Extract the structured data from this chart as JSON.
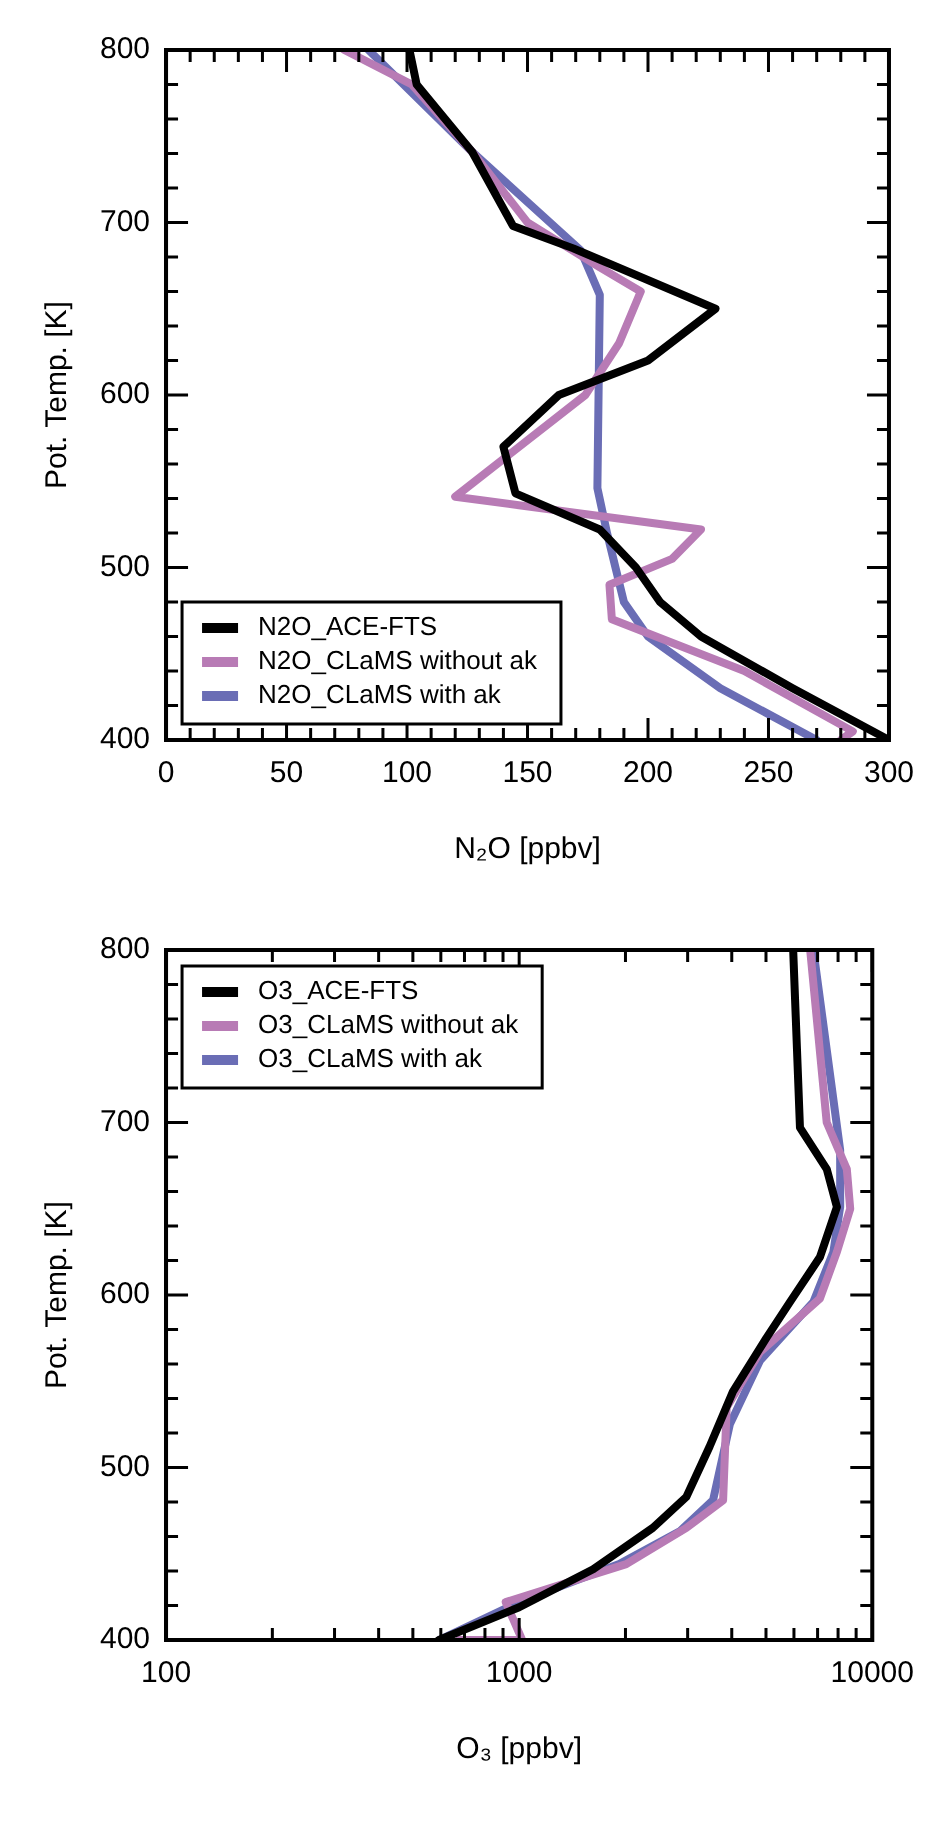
{
  "chart_data": [
    {
      "type": "line",
      "xlabel": "N₂O [ppbv]",
      "ylabel": "Pot. Temp. [K]",
      "legend": "bottom left",
      "grid": false,
      "line_style": "solid",
      "marker": "none",
      "xlim": [
        0,
        300
      ],
      "ylim": [
        400,
        800
      ],
      "xticks": [
        0,
        {
          "value": 10,
          "label": null
        },
        {
          "value": 20,
          "label": null
        },
        {
          "value": 30,
          "label": null
        },
        {
          "value": 40,
          "label": null
        },
        50,
        {
          "value": 60,
          "label": null
        },
        {
          "value": 70,
          "label": null
        },
        {
          "value": 80,
          "label": null
        },
        {
          "value": 90,
          "label": null
        },
        100,
        {
          "value": 110,
          "label": null
        },
        {
          "value": 120,
          "label": null
        },
        {
          "value": 130,
          "label": null
        },
        {
          "value": 140,
          "label": null
        },
        150,
        {
          "value": 160,
          "label": null
        },
        {
          "value": 170,
          "label": null
        },
        {
          "value": 180,
          "label": null
        },
        {
          "value": 190,
          "label": null
        },
        200,
        {
          "value": 210,
          "label": null
        },
        {
          "value": 220,
          "label": null
        },
        {
          "value": 230,
          "label": null
        },
        {
          "value": 240,
          "label": null
        },
        250,
        {
          "value": 260,
          "label": null
        },
        {
          "value": 270,
          "label": null
        },
        {
          "value": 280,
          "label": null
        },
        {
          "value": 290,
          "label": null
        },
        300
      ],
      "yticks": [
        400,
        {
          "value": 420,
          "label": null
        },
        {
          "value": 440,
          "label": null
        },
        {
          "value": 460,
          "label": null
        },
        {
          "value": 480,
          "label": null
        },
        500,
        {
          "value": 520,
          "label": null
        },
        {
          "value": 540,
          "label": null
        },
        {
          "value": 560,
          "label": null
        },
        {
          "value": 580,
          "label": null
        },
        600,
        {
          "value": 620,
          "label": null
        },
        {
          "value": 640,
          "label": null
        },
        {
          "value": 660,
          "label": null
        },
        {
          "value": 680,
          "label": null
        },
        700,
        {
          "value": 720,
          "label": null
        },
        {
          "value": 740,
          "label": null
        },
        {
          "value": 760,
          "label": null
        },
        {
          "value": 780,
          "label": null
        },
        800
      ],
      "series": [
        {
          "name": "N2O_ACE-FTS",
          "color": "#000000",
          "x": [
            101,
            104,
            127,
            144,
            169,
            228,
            200,
            163,
            140,
            145,
            180,
            195,
            205,
            222,
            260,
            300
          ],
          "values": [
            800,
            780,
            741,
            698,
            685,
            650,
            620,
            600,
            570,
            543,
            522,
            500,
            480,
            460,
            430,
            400
          ]
        },
        {
          "name": "N2O_CLaMS without ak",
          "color": "#b87bb5",
          "x": [
            74,
            102,
            127,
            150,
            180,
            197,
            188,
            174,
            120,
            222,
            210,
            184,
            185,
            240,
            285,
            280
          ],
          "values": [
            800,
            780,
            741,
            700,
            674,
            660,
            630,
            600,
            541,
            522,
            505,
            490,
            470,
            440,
            405,
            400
          ]
        },
        {
          "name": "N2O_CLaMS with ak",
          "color": "#6a6db5",
          "x": [
            84,
            127,
            172,
            180,
            179,
            183,
            190,
            200,
            230,
            270
          ],
          "values": [
            800,
            741,
            684,
            658,
            546,
            520,
            480,
            460,
            430,
            400
          ]
        }
      ]
    },
    {
      "type": "line",
      "xlabel": "O₃ [ppbv]",
      "ylabel": "Pot. Temp. [K]",
      "legend": "top left",
      "grid": false,
      "log": "x",
      "line_style": "solid",
      "marker": "none",
      "xlim": [
        100,
        10000
      ],
      "ylim": [
        400,
        800
      ],
      "xticks": [
        100,
        {
          "value": 200,
          "label": null
        },
        {
          "value": 300,
          "label": null
        },
        {
          "value": 400,
          "label": null
        },
        {
          "value": 500,
          "label": null
        },
        {
          "value": 600,
          "label": null
        },
        {
          "value": 700,
          "label": null
        },
        {
          "value": 800,
          "label": null
        },
        {
          "value": 900,
          "label": null
        },
        1000,
        {
          "value": 2000,
          "label": null
        },
        {
          "value": 3000,
          "label": null
        },
        {
          "value": 4000,
          "label": null
        },
        {
          "value": 5000,
          "label": null
        },
        {
          "value": 6000,
          "label": null
        },
        {
          "value": 7000,
          "label": null
        },
        {
          "value": 8000,
          "label": null
        },
        {
          "value": 9000,
          "label": null
        },
        10000
      ],
      "yticks": [
        400,
        {
          "value": 420,
          "label": null
        },
        {
          "value": 440,
          "label": null
        },
        {
          "value": 460,
          "label": null
        },
        {
          "value": 480,
          "label": null
        },
        500,
        {
          "value": 520,
          "label": null
        },
        {
          "value": 540,
          "label": null
        },
        {
          "value": 560,
          "label": null
        },
        {
          "value": 580,
          "label": null
        },
        600,
        {
          "value": 620,
          "label": null
        },
        {
          "value": 640,
          "label": null
        },
        {
          "value": 660,
          "label": null
        },
        {
          "value": 680,
          "label": null
        },
        700,
        {
          "value": 720,
          "label": null
        },
        {
          "value": 740,
          "label": null
        },
        {
          "value": 760,
          "label": null
        },
        {
          "value": 780,
          "label": null
        },
        800
      ],
      "series": [
        {
          "name": "O3_ACE-FTS",
          "color": "#000000",
          "x": [
            5970,
            6240,
            7430,
            7940,
            7110,
            5850,
            5010,
            4030,
            3460,
            2975,
            2390,
            1620,
            1000,
            593
          ],
          "values": [
            800,
            697,
            673,
            651,
            622,
            596,
            575,
            544,
            512,
            483,
            465,
            441,
            419,
            400
          ]
        },
        {
          "name": "O3_CLaMS without ak",
          "color": "#b87bb5",
          "x": [
            6670,
            7430,
            8470,
            8660,
            7940,
            7110,
            4810,
            3870,
            3780,
            2975,
            2010,
            916,
            1020,
            676
          ],
          "values": [
            800,
            700,
            673,
            650,
            625,
            598,
            567,
            535,
            481,
            465,
            444,
            422,
            400,
            400
          ]
        },
        {
          "name": "O3_CLaMS with ak",
          "color": "#6a6db5",
          "x": [
            6810,
            8110,
            8110,
            7760,
            6810,
            4810,
            3950,
            3540,
            2850,
            1920,
            1000,
            593
          ],
          "values": [
            800,
            684,
            651,
            625,
            596,
            562,
            525,
            481,
            463,
            444,
            422,
            400
          ]
        }
      ]
    }
  ]
}
